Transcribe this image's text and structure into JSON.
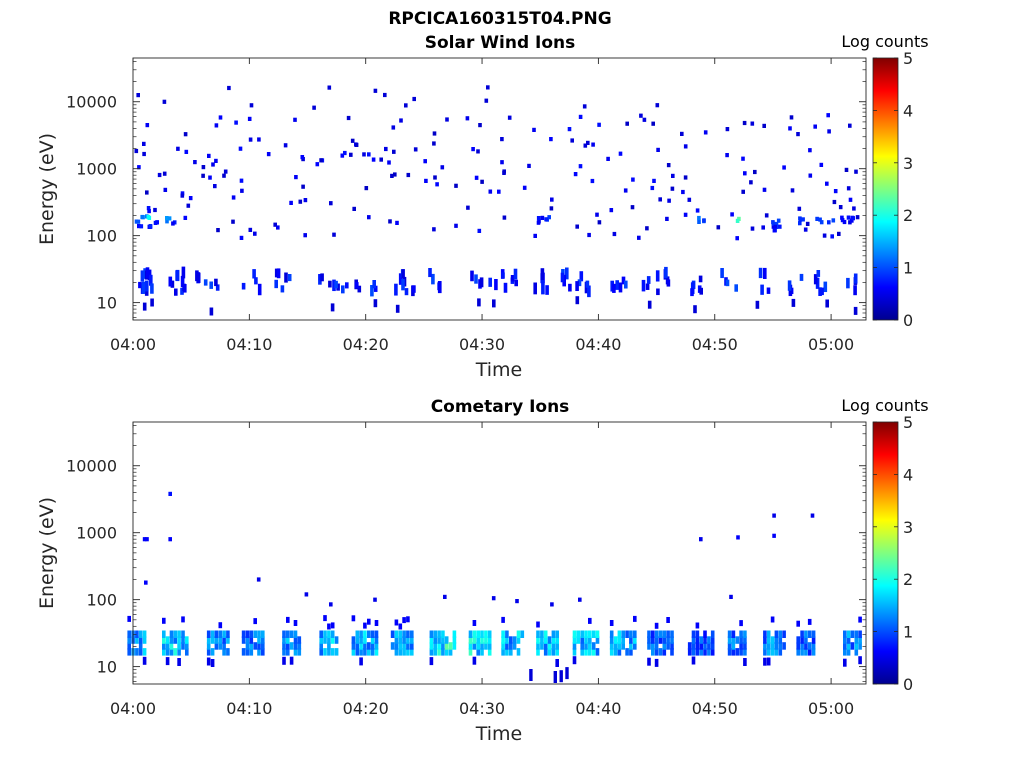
{
  "figure_title": "RPCICA160315T04.PNG",
  "chart_data": [
    {
      "type": "heatmap",
      "title": "Solar Wind Ions",
      "xlabel": "Time",
      "ylabel": "Energy (eV)",
      "x_range": [
        "04:00",
        "05:03"
      ],
      "x_ticks": [
        "04:00",
        "04:10",
        "04:20",
        "04:30",
        "04:40",
        "04:50",
        "05:00"
      ],
      "y_scale": "log",
      "y_range": [
        5.5,
        45000
      ],
      "y_ticks": [
        "10",
        "100",
        "1000",
        "10000"
      ],
      "colorbar": {
        "label": "Log counts",
        "range": [
          0,
          5
        ],
        "ticks": [
          "0",
          "1",
          "2",
          "3",
          "4",
          "5"
        ],
        "colormap": "jet"
      },
      "cells_min_energy_log": [
        [
          0.3,
          170,
          0.9
        ],
        [
          1.0,
          180,
          1.2
        ],
        [
          1.4,
          175,
          1.8
        ],
        [
          3.2,
          170,
          1.3
        ],
        [
          2.0,
          165,
          0.7
        ],
        [
          48.8,
          175,
          1.2
        ],
        [
          49.2,
          178,
          1.0
        ],
        [
          52.0,
          173,
          2.2
        ],
        [
          55.3,
          170,
          1.0
        ],
        [
          55.3,
          150,
          0.8
        ],
        [
          57.5,
          170,
          0.9
        ],
        [
          59.0,
          175,
          0.8
        ],
        [
          60.0,
          172,
          0.9
        ],
        [
          61.2,
          171,
          0.7
        ],
        [
          61.8,
          173,
          0.6
        ],
        [
          35.7,
          175,
          0.9
        ],
        [
          35.0,
          170,
          0.6
        ],
        [
          0.5,
          130,
          0.6
        ],
        [
          1.3,
          130,
          0.7
        ],
        [
          1.1,
          240,
          0.6
        ],
        [
          3.3,
          150,
          0.7
        ],
        [
          55.3,
          130,
          0.6
        ]
      ],
      "cells_low_energy": [
        [
          0.2,
          0.5,
          25
        ],
        [
          0.8,
          25,
          0
        ],
        [
          1.6,
          0.8,
          25
        ],
        [
          3.6,
          0.6,
          25
        ],
        [
          4.2,
          0.8,
          28
        ],
        [
          5.0,
          0.8,
          25
        ],
        [
          6.6,
          0.8,
          25
        ],
        [
          10.2,
          0.6,
          25
        ],
        [
          12.9,
          0.9,
          25
        ],
        [
          15.6,
          0.6,
          25
        ],
        [
          17.4,
          0.6,
          25
        ],
        [
          19.0,
          0.5,
          25
        ],
        [
          20.7,
          0.7,
          25
        ],
        [
          22.8,
          0.6,
          25
        ],
        [
          23.7,
          0.6,
          25
        ],
        [
          26.0,
          0.7,
          25
        ],
        [
          29.3,
          0.8,
          25
        ],
        [
          31.3,
          0.6,
          25
        ],
        [
          32.4,
          0.6,
          25
        ],
        [
          35.0,
          0.7,
          25
        ],
        [
          37.1,
          0.6,
          25
        ],
        [
          38.6,
          0.6,
          25
        ],
        [
          41.7,
          0.6,
          25
        ],
        [
          44.4,
          0.6,
          25
        ],
        [
          45.7,
          0.6,
          25
        ],
        [
          48.3,
          0.7,
          25
        ],
        [
          51.3,
          0.6,
          25
        ],
        [
          54.0,
          0.6,
          25
        ],
        [
          57.0,
          0.6,
          25
        ],
        [
          59.2,
          0.5,
          25
        ],
        [
          61.8,
          0.6,
          25
        ]
      ]
    },
    {
      "type": "heatmap",
      "title": "Cometary Ions",
      "xlabel": "Time",
      "ylabel": "Energy (eV)",
      "x_range": [
        "04:00",
        "05:03"
      ],
      "x_ticks": [
        "04:00",
        "04:10",
        "04:20",
        "04:30",
        "04:40",
        "04:50",
        "05:00"
      ],
      "y_scale": "log",
      "y_range": [
        5.5,
        45000
      ],
      "y_ticks": [
        "10",
        "100",
        "1000",
        "10000"
      ],
      "colorbar": {
        "label": "Log counts",
        "range": [
          0,
          5
        ],
        "ticks": [
          "0",
          "1",
          "2",
          "3",
          "4",
          "5"
        ],
        "colormap": "jet"
      },
      "bursts": [
        [
          0.0,
          1.6
        ],
        [
          3.3,
          1.8
        ],
        [
          7.0,
          1.4
        ],
        [
          10.0,
          1.3
        ],
        [
          13.3,
          1.5
        ],
        [
          16.5,
          1.7
        ],
        [
          19.6,
          1.6
        ],
        [
          22.8,
          1.6
        ],
        [
          26.3,
          2.1
        ],
        [
          29.5,
          1.9
        ],
        [
          32.3,
          1.7
        ],
        [
          35.3,
          1.8
        ],
        [
          38.6,
          1.7
        ],
        [
          41.8,
          1.6
        ],
        [
          45.0,
          1.2
        ],
        [
          48.5,
          1.1
        ],
        [
          51.6,
          1.3
        ],
        [
          54.8,
          1.4
        ],
        [
          57.5,
          1.2
        ],
        [
          61.5,
          1.4
        ]
      ],
      "sparse_points": [
        [
          1.0,
          800,
          0.6
        ],
        [
          1.2,
          800,
          0.6
        ],
        [
          3.2,
          3800,
          0.7
        ],
        [
          3.2,
          800,
          0.6
        ],
        [
          1.1,
          180,
          0.6
        ],
        [
          10.8,
          200,
          0.5
        ],
        [
          48.8,
          800,
          0.5
        ],
        [
          52.0,
          850,
          0.6
        ],
        [
          55.1,
          900,
          0.6
        ],
        [
          55.1,
          1800,
          0.5
        ],
        [
          58.4,
          1800,
          0.5
        ],
        [
          51.4,
          110,
          0.5
        ],
        [
          14.9,
          120,
          0.5
        ],
        [
          17.0,
          85,
          0.5
        ],
        [
          20.8,
          100,
          0.5
        ],
        [
          26.8,
          110,
          0.5
        ],
        [
          31.0,
          105,
          0.5
        ],
        [
          33.0,
          95,
          0.5
        ],
        [
          36.0,
          85,
          0.5
        ],
        [
          38.4,
          100,
          0.5
        ]
      ]
    }
  ]
}
